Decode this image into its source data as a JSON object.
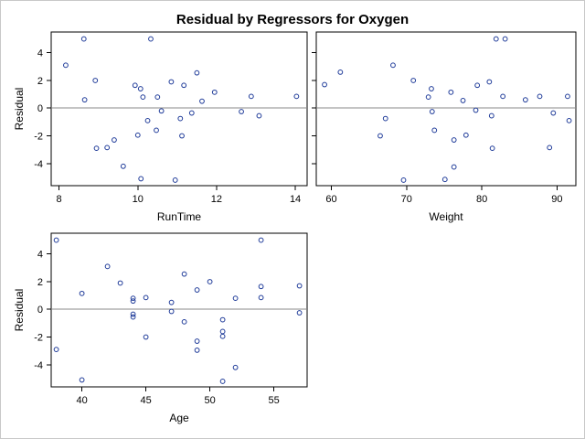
{
  "chart_data": {
    "type": "scatter",
    "title": "Residual by Regressors for Oxygen",
    "ylabel": "Residual",
    "marker_color": "#1f3b99",
    "refline_color": "#888888",
    "panels": [
      {
        "name": "RunTime",
        "xlabel": "RunTime",
        "xlim": [
          7.8,
          14.3
        ],
        "ylim": [
          -5.6,
          5.5
        ],
        "xticks": [
          8,
          10,
          12,
          14
        ],
        "yticks": [
          -4,
          -2,
          0,
          2,
          4
        ],
        "points": [
          {
            "x": 8.17,
            "y": 3.1
          },
          {
            "x": 8.63,
            "y": 5.0
          },
          {
            "x": 8.65,
            "y": 0.6
          },
          {
            "x": 8.92,
            "y": 2.0
          },
          {
            "x": 8.95,
            "y": -2.9
          },
          {
            "x": 9.22,
            "y": -2.85
          },
          {
            "x": 9.4,
            "y": -2.3
          },
          {
            "x": 9.63,
            "y": -4.2
          },
          {
            "x": 9.93,
            "y": 1.65
          },
          {
            "x": 10.0,
            "y": -1.95
          },
          {
            "x": 10.07,
            "y": 1.4
          },
          {
            "x": 10.08,
            "y": -5.1
          },
          {
            "x": 10.13,
            "y": 0.8
          },
          {
            "x": 10.25,
            "y": -0.9
          },
          {
            "x": 10.33,
            "y": 5.0
          },
          {
            "x": 10.47,
            "y": -1.6
          },
          {
            "x": 10.5,
            "y": 0.8
          },
          {
            "x": 10.6,
            "y": -0.2
          },
          {
            "x": 10.85,
            "y": 1.9
          },
          {
            "x": 10.95,
            "y": -5.2
          },
          {
            "x": 11.08,
            "y": -0.75
          },
          {
            "x": 11.12,
            "y": -2.0
          },
          {
            "x": 11.17,
            "y": 1.65
          },
          {
            "x": 11.37,
            "y": -0.35
          },
          {
            "x": 11.5,
            "y": 2.55
          },
          {
            "x": 11.63,
            "y": 0.5
          },
          {
            "x": 11.95,
            "y": 1.15
          },
          {
            "x": 12.63,
            "y": -0.25
          },
          {
            "x": 12.88,
            "y": 0.85
          },
          {
            "x": 13.08,
            "y": -0.55
          },
          {
            "x": 14.03,
            "y": 0.85
          }
        ]
      },
      {
        "name": "Weight",
        "xlabel": "Weight",
        "xlim": [
          58.0,
          92.5
        ],
        "ylim": [
          -5.6,
          5.5
        ],
        "xticks": [
          60,
          70,
          80,
          90
        ],
        "yticks": [
          -4,
          -2,
          0,
          2,
          4
        ],
        "points": [
          {
            "x": 59.1,
            "y": 1.7
          },
          {
            "x": 61.2,
            "y": 2.6
          },
          {
            "x": 66.5,
            "y": -2.0
          },
          {
            "x": 67.2,
            "y": -0.75
          },
          {
            "x": 68.2,
            "y": 3.1
          },
          {
            "x": 69.6,
            "y": -5.2
          },
          {
            "x": 70.9,
            "y": 2.0
          },
          {
            "x": 72.9,
            "y": 0.8
          },
          {
            "x": 73.3,
            "y": 1.4
          },
          {
            "x": 73.4,
            "y": -0.25
          },
          {
            "x": 73.7,
            "y": -1.6
          },
          {
            "x": 75.1,
            "y": -5.15
          },
          {
            "x": 75.9,
            "y": 1.15
          },
          {
            "x": 76.3,
            "y": -2.3
          },
          {
            "x": 76.3,
            "y": -4.25
          },
          {
            "x": 77.5,
            "y": 0.55
          },
          {
            "x": 77.9,
            "y": -1.95
          },
          {
            "x": 79.2,
            "y": -0.15
          },
          {
            "x": 79.4,
            "y": 1.65
          },
          {
            "x": 81.0,
            "y": 1.9
          },
          {
            "x": 81.3,
            "y": -0.55
          },
          {
            "x": 81.4,
            "y": -2.9
          },
          {
            "x": 81.9,
            "y": 5.0
          },
          {
            "x": 82.8,
            "y": 0.85
          },
          {
            "x": 83.1,
            "y": 5.0
          },
          {
            "x": 85.8,
            "y": 0.6
          },
          {
            "x": 87.7,
            "y": 0.85
          },
          {
            "x": 89.0,
            "y": -2.85
          },
          {
            "x": 89.5,
            "y": -0.35
          },
          {
            "x": 91.4,
            "y": 0.85
          },
          {
            "x": 91.6,
            "y": -0.9
          }
        ]
      },
      {
        "name": "Age",
        "xlabel": "Age",
        "xlim": [
          37.6,
          57.6
        ],
        "ylim": [
          -5.6,
          5.5
        ],
        "xticks": [
          40,
          45,
          50,
          55
        ],
        "yticks": [
          -4,
          -2,
          0,
          2,
          4
        ],
        "points": [
          {
            "x": 38,
            "y": 5.0
          },
          {
            "x": 38,
            "y": -2.9
          },
          {
            "x": 40,
            "y": 1.15
          },
          {
            "x": 40,
            "y": -5.1
          },
          {
            "x": 42,
            "y": 3.1
          },
          {
            "x": 43,
            "y": 1.9
          },
          {
            "x": 44,
            "y": 0.8
          },
          {
            "x": 44,
            "y": 0.6
          },
          {
            "x": 44,
            "y": -0.35
          },
          {
            "x": 44,
            "y": -0.55
          },
          {
            "x": 45,
            "y": 0.85
          },
          {
            "x": 45,
            "y": -2.0
          },
          {
            "x": 47,
            "y": 0.5
          },
          {
            "x": 47,
            "y": -0.15
          },
          {
            "x": 48,
            "y": 2.55
          },
          {
            "x": 48,
            "y": -0.9
          },
          {
            "x": 49,
            "y": 1.4
          },
          {
            "x": 49,
            "y": -2.3
          },
          {
            "x": 49,
            "y": -2.95
          },
          {
            "x": 50,
            "y": 2.0
          },
          {
            "x": 51,
            "y": -0.75
          },
          {
            "x": 51,
            "y": -1.6
          },
          {
            "x": 51,
            "y": -1.95
          },
          {
            "x": 51,
            "y": -5.2
          },
          {
            "x": 52,
            "y": 0.8
          },
          {
            "x": 52,
            "y": -4.2
          },
          {
            "x": 54,
            "y": 5.0
          },
          {
            "x": 54,
            "y": 1.65
          },
          {
            "x": 54,
            "y": 0.85
          },
          {
            "x": 57,
            "y": 1.7
          },
          {
            "x": 57,
            "y": -0.25
          }
        ]
      }
    ]
  }
}
